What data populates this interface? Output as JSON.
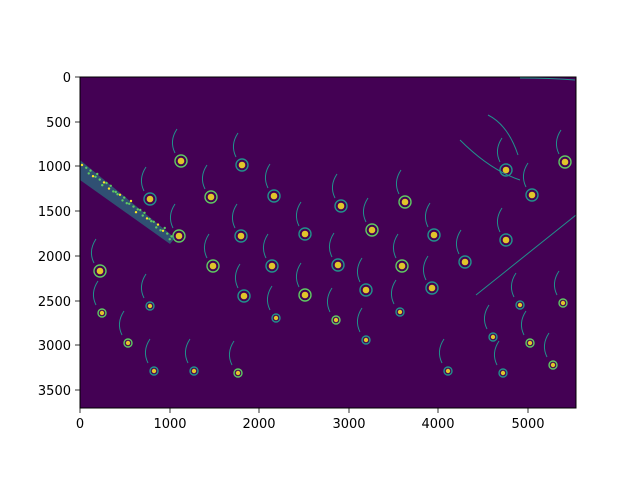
{
  "figure": {
    "kind": "image plot (imshow) of a thresholded feature map",
    "colormap": "viridis",
    "background_color": "#440154",
    "highlight_color": "#fde725",
    "mid_color": "#21918c",
    "axes_frame_color": "#000000",
    "x_ticks": [
      "0",
      "1000",
      "2000",
      "3000",
      "4000",
      "5000"
    ],
    "y_ticks": [
      "0",
      "500",
      "1000",
      "1500",
      "2000",
      "2500",
      "3000",
      "3500"
    ],
    "x_range": [
      0,
      5530
    ],
    "y_range": [
      0,
      3690
    ],
    "grid": false,
    "legend": "none"
  }
}
